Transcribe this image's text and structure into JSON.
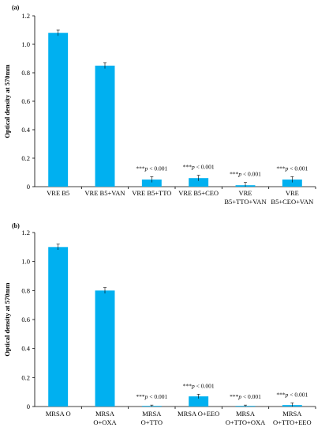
{
  "chart_data": [
    {
      "type": "bar",
      "panel": "(a)",
      "ylabel": "Optical density at 570mm",
      "ylim": [
        0,
        1.2
      ],
      "yticks": [
        "0",
        "0.2",
        "0.4",
        "0.6",
        "0.8",
        "1.0",
        "1.2"
      ],
      "categories": [
        [
          "VRE B5"
        ],
        [
          "VRE B5+VAN"
        ],
        [
          "VRE B5+TTO"
        ],
        [
          "VRE B5+CEO"
        ],
        [
          "VRE",
          "B5+TTO+VAN"
        ],
        [
          "VRE",
          "B5+CEO+VAN"
        ]
      ],
      "values": [
        1.08,
        0.85,
        0.05,
        0.06,
        0.01,
        0.05
      ],
      "errors": [
        0.02,
        0.02,
        0.02,
        0.02,
        0.02,
        0.02
      ],
      "annotations": [
        {
          "stars": "",
          "p": ""
        },
        {
          "stars": "",
          "p": ""
        },
        {
          "stars": "***",
          "p": "p",
          "rest": " < 0.001"
        },
        {
          "stars": "***",
          "p": "p",
          "rest": " < 0.001"
        },
        {
          "stars": "***",
          "p": "p",
          "rest": " < 0.001"
        },
        {
          "stars": "***",
          "p": "p",
          "rest": " < 0.001"
        }
      ],
      "bar_color": "#00b0f0"
    },
    {
      "type": "bar",
      "panel": "(b)",
      "ylabel": "Optical density at 570mm",
      "ylim": [
        0,
        1.2
      ],
      "yticks": [
        "0",
        "0.2",
        "0.4",
        "0.6",
        "0.8",
        "1.0",
        "1.2"
      ],
      "categories": [
        [
          "MRSA O"
        ],
        [
          "MRSA",
          "O+OXA"
        ],
        [
          "MRSA",
          "O+TTO"
        ],
        [
          "MRSA O+EEO"
        ],
        [
          "MRSA",
          "O+TTO+OXA"
        ],
        [
          "MRSA",
          "O+TTO+EEO"
        ]
      ],
      "values": [
        1.1,
        0.8,
        0.0,
        0.07,
        0.0,
        0.01
      ],
      "errors": [
        0.02,
        0.02,
        0.01,
        0.015,
        0.01,
        0.015
      ],
      "annotations": [
        {
          "stars": "",
          "p": ""
        },
        {
          "stars": "",
          "p": ""
        },
        {
          "stars": "***",
          "p": "p",
          "rest": " < 0.001"
        },
        {
          "stars": "***",
          "p": "p",
          "rest": " < 0.001"
        },
        {
          "stars": "***",
          "p": "p",
          "rest": " < 0.001"
        },
        {
          "stars": "***",
          "p": "p",
          "rest": " < 0.001"
        }
      ],
      "bar_color": "#00b0f0"
    }
  ]
}
